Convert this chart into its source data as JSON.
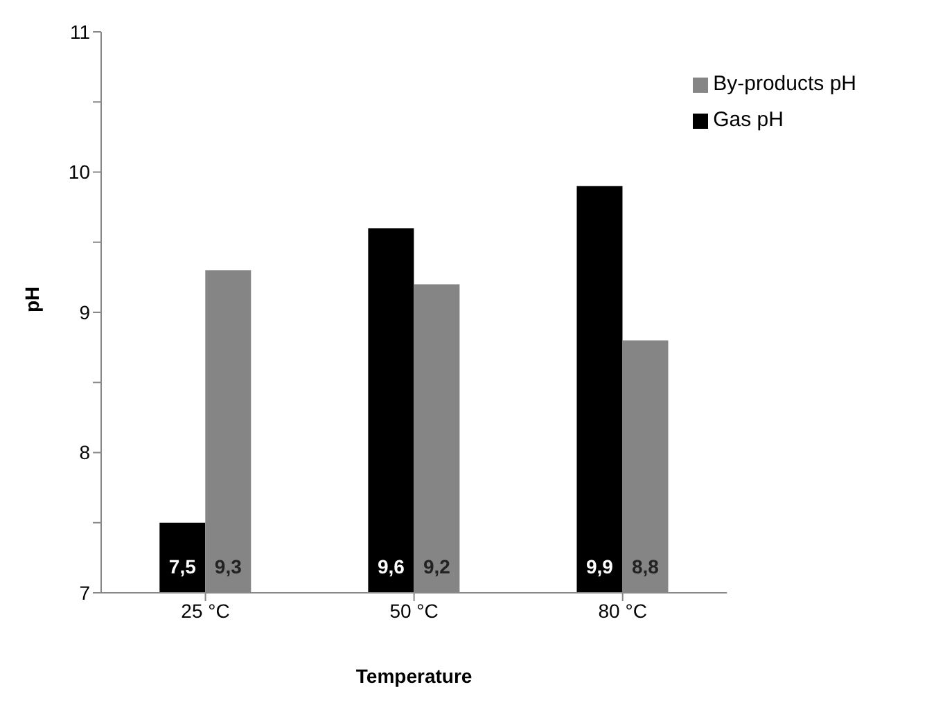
{
  "chart_data": {
    "type": "bar",
    "xlabel": "Temperature",
    "ylabel": "pH",
    "categories": [
      "25 °C",
      "50 °C",
      "80 °C"
    ],
    "series": [
      {
        "name": "Gas pH",
        "color": "#000000",
        "values": [
          7.5,
          9.6,
          9.9
        ],
        "value_labels": [
          "7,5",
          "9,6",
          "9,9"
        ]
      },
      {
        "name": "By-products pH",
        "color": "#858585",
        "values": [
          9.3,
          9.2,
          8.8
        ],
        "value_labels": [
          "9,3",
          "9,2",
          "8,8"
        ]
      }
    ],
    "ylim": [
      7,
      11
    ],
    "yticks": [
      7,
      {
        "value": 7.5,
        "label": null
      },
      8,
      {
        "value": 8.5,
        "label": null
      },
      9,
      {
        "value": 9.5,
        "label": null
      },
      10,
      {
        "value": 10.5,
        "label": null
      },
      11
    ],
    "grid": false,
    "legend": "top right"
  }
}
